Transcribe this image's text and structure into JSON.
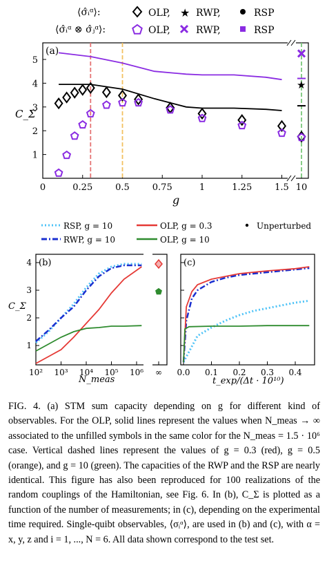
{
  "figure": {
    "legend_top": {
      "row1_label": "⟨σ̂ᵢᵅ⟩:",
      "row2_label": "⟨σ̂ᵢᵅ ⊗ σ̂ⱼᵅ⟩:",
      "entries": [
        "OLP,",
        "RWP,",
        "RSP"
      ]
    },
    "legend_bottom": {
      "entries": [
        "RSP, g = 10",
        "OLP, g = 0.3",
        "Unperturbed",
        "RWP, g = 10",
        "OLP, g = 10"
      ]
    },
    "colors": {
      "purple": "#8a2be2",
      "red": "#e53935",
      "orange": "#f0b040",
      "green": "#2e8b2e",
      "blue": "#1a2fd0",
      "cyan": "#4fc3f7",
      "red_dashed": "#e57373",
      "orange_dashed": "#f2c060",
      "green_dashed": "#7ac77a"
    }
  },
  "chart_data": [
    {
      "panel": "(a)",
      "type": "scatter+line",
      "xlabel": "g",
      "ylabel": "C_Σ",
      "xticks": [
        "0",
        "0.25",
        "0.5",
        "0.75",
        "1",
        "1.25",
        "1.5",
        "10"
      ],
      "yticks": [
        "1",
        "2",
        "3",
        "4",
        "5"
      ],
      "ylim": [
        0,
        5.7
      ],
      "vlines": [
        0.3,
        0.5,
        10
      ],
      "series": [
        {
          "name": "⟨σ̂ᵢᵅ⟩: OLP",
          "marker": "diamond",
          "x": [
            0.1,
            0.15,
            0.2,
            0.25,
            0.3,
            0.4,
            0.5,
            0.6,
            0.8,
            1.0,
            1.25,
            1.5,
            10
          ],
          "y": [
            3.15,
            3.4,
            3.6,
            3.72,
            3.8,
            3.62,
            3.48,
            3.32,
            2.97,
            2.72,
            2.45,
            2.2,
            1.75
          ]
        },
        {
          "name": "⟨σ̂ᵢᵅ ⊗ σ̂ⱼᵅ⟩: OLP",
          "marker": "pentagon",
          "x": [
            0.1,
            0.15,
            0.2,
            0.25,
            0.3,
            0.4,
            0.5,
            0.6,
            0.8,
            1.0,
            1.25,
            1.5,
            10
          ],
          "y": [
            0.22,
            0.97,
            1.78,
            2.25,
            2.72,
            3.08,
            3.18,
            3.18,
            2.88,
            2.52,
            2.22,
            1.9,
            1.72
          ]
        },
        {
          "name": "OLP ∞ (single)",
          "line": true,
          "x": [
            0.1,
            0.3,
            0.5,
            0.7,
            0.9,
            1.0,
            1.2,
            1.4,
            1.5
          ],
          "y": [
            3.95,
            3.95,
            3.75,
            3.35,
            3.0,
            2.95,
            2.95,
            2.9,
            2.85
          ]
        },
        {
          "name": "OLP ∞ (pair)",
          "line": true,
          "x": [
            0.1,
            0.3,
            0.5,
            0.7,
            0.9,
            1.0,
            1.2,
            1.4,
            1.5
          ],
          "y": [
            5.28,
            5.12,
            4.85,
            4.5,
            4.38,
            4.35,
            4.35,
            4.25,
            4.15
          ]
        },
        {
          "name": "⟨σ̂ᵢᵅ⟩: RWP",
          "marker": "star",
          "x": [
            10
          ],
          "y": [
            3.95
          ]
        },
        {
          "name": "⟨σ̂ᵢᵅ⟩: RSP",
          "marker": "dash",
          "x": [
            10
          ],
          "y": [
            3.05
          ]
        },
        {
          "name": "⟨σ̂ᵢᵅ ⊗ σ̂ⱼᵅ⟩: RWP",
          "marker": "x",
          "x": [
            10
          ],
          "y": [
            5.25
          ]
        },
        {
          "name": "⟨σ̂ᵢᵅ ⊗ σ̂ⱼᵅ⟩: RSP",
          "marker": "dash",
          "x": [
            10
          ],
          "y": [
            4.2
          ]
        }
      ]
    },
    {
      "panel": "(b)",
      "type": "line",
      "xlabel": "N_meas",
      "ylabel": "C_Σ",
      "xticks": [
        "10²",
        "10³",
        "10⁴",
        "10⁵",
        "10⁶",
        "∞"
      ],
      "yticks": [
        "1",
        "2",
        "3",
        "4"
      ],
      "ylim": [
        0.3,
        4.3
      ],
      "series": [
        {
          "name": "RSP, g = 10",
          "x": [
            2,
            2.5,
            3,
            3.5,
            4,
            4.5,
            5,
            5.5,
            6.2
          ],
          "y": [
            1.1,
            1.5,
            2.0,
            2.5,
            3.1,
            3.6,
            3.85,
            3.95,
            3.95
          ]
        },
        {
          "name": "RWP, g = 10",
          "x": [
            2,
            2.5,
            3,
            3.5,
            4,
            4.5,
            5,
            5.5,
            6.2
          ],
          "y": [
            1.15,
            1.55,
            2.0,
            2.4,
            3.0,
            3.5,
            3.8,
            3.9,
            3.9
          ]
        },
        {
          "name": "OLP, g = 0.3",
          "x": [
            2,
            2.5,
            3,
            3.5,
            4,
            4.5,
            5,
            5.5,
            6.2
          ],
          "y": [
            0.35,
            0.6,
            0.85,
            1.3,
            1.8,
            2.3,
            2.9,
            3.4,
            3.85
          ]
        },
        {
          "name": "OLP, g = 10",
          "x": [
            2,
            2.5,
            3,
            3.5,
            4,
            4.5,
            5,
            5.5,
            6.2
          ],
          "y": [
            0.8,
            1.05,
            1.3,
            1.5,
            1.62,
            1.65,
            1.7,
            1.7,
            1.72
          ]
        },
        {
          "name": "OLP, g = 0.3 (∞)",
          "marker": "diamond",
          "x": [
            "∞"
          ],
          "y": [
            3.95
          ]
        },
        {
          "name": "OLP, g = 10 (∞)",
          "marker": "pentagon",
          "x": [
            "∞"
          ],
          "y": [
            2.95
          ]
        }
      ]
    },
    {
      "panel": "(c)",
      "type": "line",
      "xlabel": "t_exp/(Δt · 10¹⁰)",
      "xticks": [
        "0.0",
        "0.1",
        "0.2",
        "0.3",
        "0.4"
      ],
      "ylim": [
        0.3,
        4.3
      ],
      "series": [
        {
          "name": "RSP, g = 10",
          "x": [
            0,
            0.05,
            0.1,
            0.15,
            0.2,
            0.25,
            0.3,
            0.35,
            0.4,
            0.45
          ],
          "y": [
            0.4,
            1.35,
            1.65,
            1.9,
            2.1,
            2.25,
            2.35,
            2.45,
            2.55,
            2.62
          ]
        },
        {
          "name": "RWP, g = 10",
          "x": [
            0,
            0.01,
            0.03,
            0.05,
            0.1,
            0.15,
            0.2,
            0.3,
            0.4,
            0.45
          ],
          "y": [
            0.4,
            1.9,
            2.7,
            3.0,
            3.3,
            3.45,
            3.55,
            3.65,
            3.75,
            3.8
          ]
        },
        {
          "name": "OLP, g = 0.3",
          "x": [
            0,
            0.01,
            0.03,
            0.05,
            0.1,
            0.15,
            0.2,
            0.3,
            0.4,
            0.45
          ],
          "y": [
            0.4,
            2.4,
            2.95,
            3.2,
            3.4,
            3.5,
            3.6,
            3.7,
            3.78,
            3.85
          ]
        },
        {
          "name": "OLP, g = 10",
          "x": [
            0,
            0.005,
            0.02,
            0.1,
            0.2,
            0.3,
            0.4,
            0.45
          ],
          "y": [
            0.4,
            1.6,
            1.68,
            1.7,
            1.7,
            1.72,
            1.72,
            1.72
          ]
        }
      ]
    }
  ],
  "caption": {
    "text": "FIG. 4. (a) STM sum capacity depending on g for different kind of observables. For the OLP, solid lines represent the values when N_meas → ∞ associated to the unfilled symbols in the same color for the N_meas = 1.5 · 10⁶ case. Vertical dashed lines represent the values of g = 0.3 (red), g = 0.5 (orange), and g = 10 (green). The capacities of the RWP and the RSP are nearly identical. This figure has also been reproduced for 100 realizations of the random couplings of the Hamiltonian, see Fig. 6. In (b), C_Σ is plotted as a function of the number of measurements; in (c), depending on the experimental time required. Single-quibt observables, ⟨σᵢᵅ⟩, are used in (b) and (c), with α = x, y, z and i = 1, ..., N = 6. All data shown correspond to the test set."
  }
}
